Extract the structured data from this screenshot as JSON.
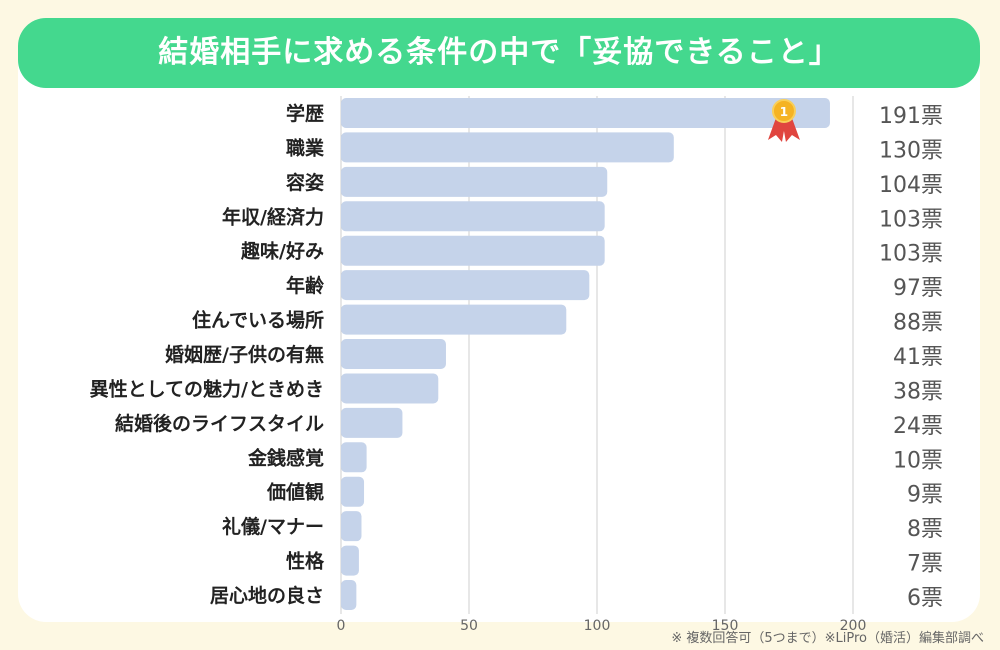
{
  "title": "結婚相手に求める条件の中で「妥協できること」",
  "footer": "※ 複数回答可（5つまで）※LiPro（婚活）編集部調べ",
  "colors": {
    "bar": "#c5d3ea",
    "title_bg": "#44d88e",
    "background": "#fdf8e3",
    "medal": "#f5b323",
    "ribbon": "#e0453f"
  },
  "medal_icon": "gold-medal-rank-1",
  "chart_data": {
    "type": "bar",
    "orientation": "horizontal",
    "categories": [
      "学歴",
      "職業",
      "容姿",
      "年収/経済力",
      "趣味/好み",
      "年齢",
      "住んでいる場所",
      "婚姻歴/子供の有無",
      "異性としての魅力/ときめき",
      "結婚後のライフスタイル",
      "金銭感覚",
      "価値観",
      "礼儀/マナー",
      "性格",
      "居心地の良さ"
    ],
    "values": [
      191,
      130,
      104,
      103,
      103,
      97,
      88,
      41,
      38,
      24,
      10,
      9,
      8,
      7,
      6
    ],
    "value_labels": [
      "191票",
      "130票",
      "104票",
      "103票",
      "103票",
      "97票",
      "88票",
      "41票",
      "38票",
      "24票",
      "10票",
      "9票",
      "8票",
      "7票",
      "6票"
    ],
    "xlim": [
      0,
      200
    ],
    "xticks": [
      "0",
      "50",
      "100",
      "150",
      "200"
    ],
    "grid": true
  }
}
